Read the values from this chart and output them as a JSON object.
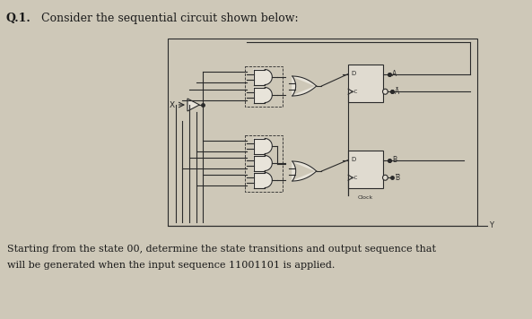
{
  "bg_color": "#cec8b8",
  "title_text": "Q.1.",
  "header_text": "Consider the sequential circuit shown below:",
  "footer_line1": "Starting from the state 00, determine the state transitions and output sequence that",
  "footer_line2": "will be generated when the input sequence 11001101 is applied.",
  "text_color": "#1a1a1a",
  "line_color": "#2a2a2a",
  "box_bg": "#e0dbd0",
  "gate_bg": "#e8e4da"
}
